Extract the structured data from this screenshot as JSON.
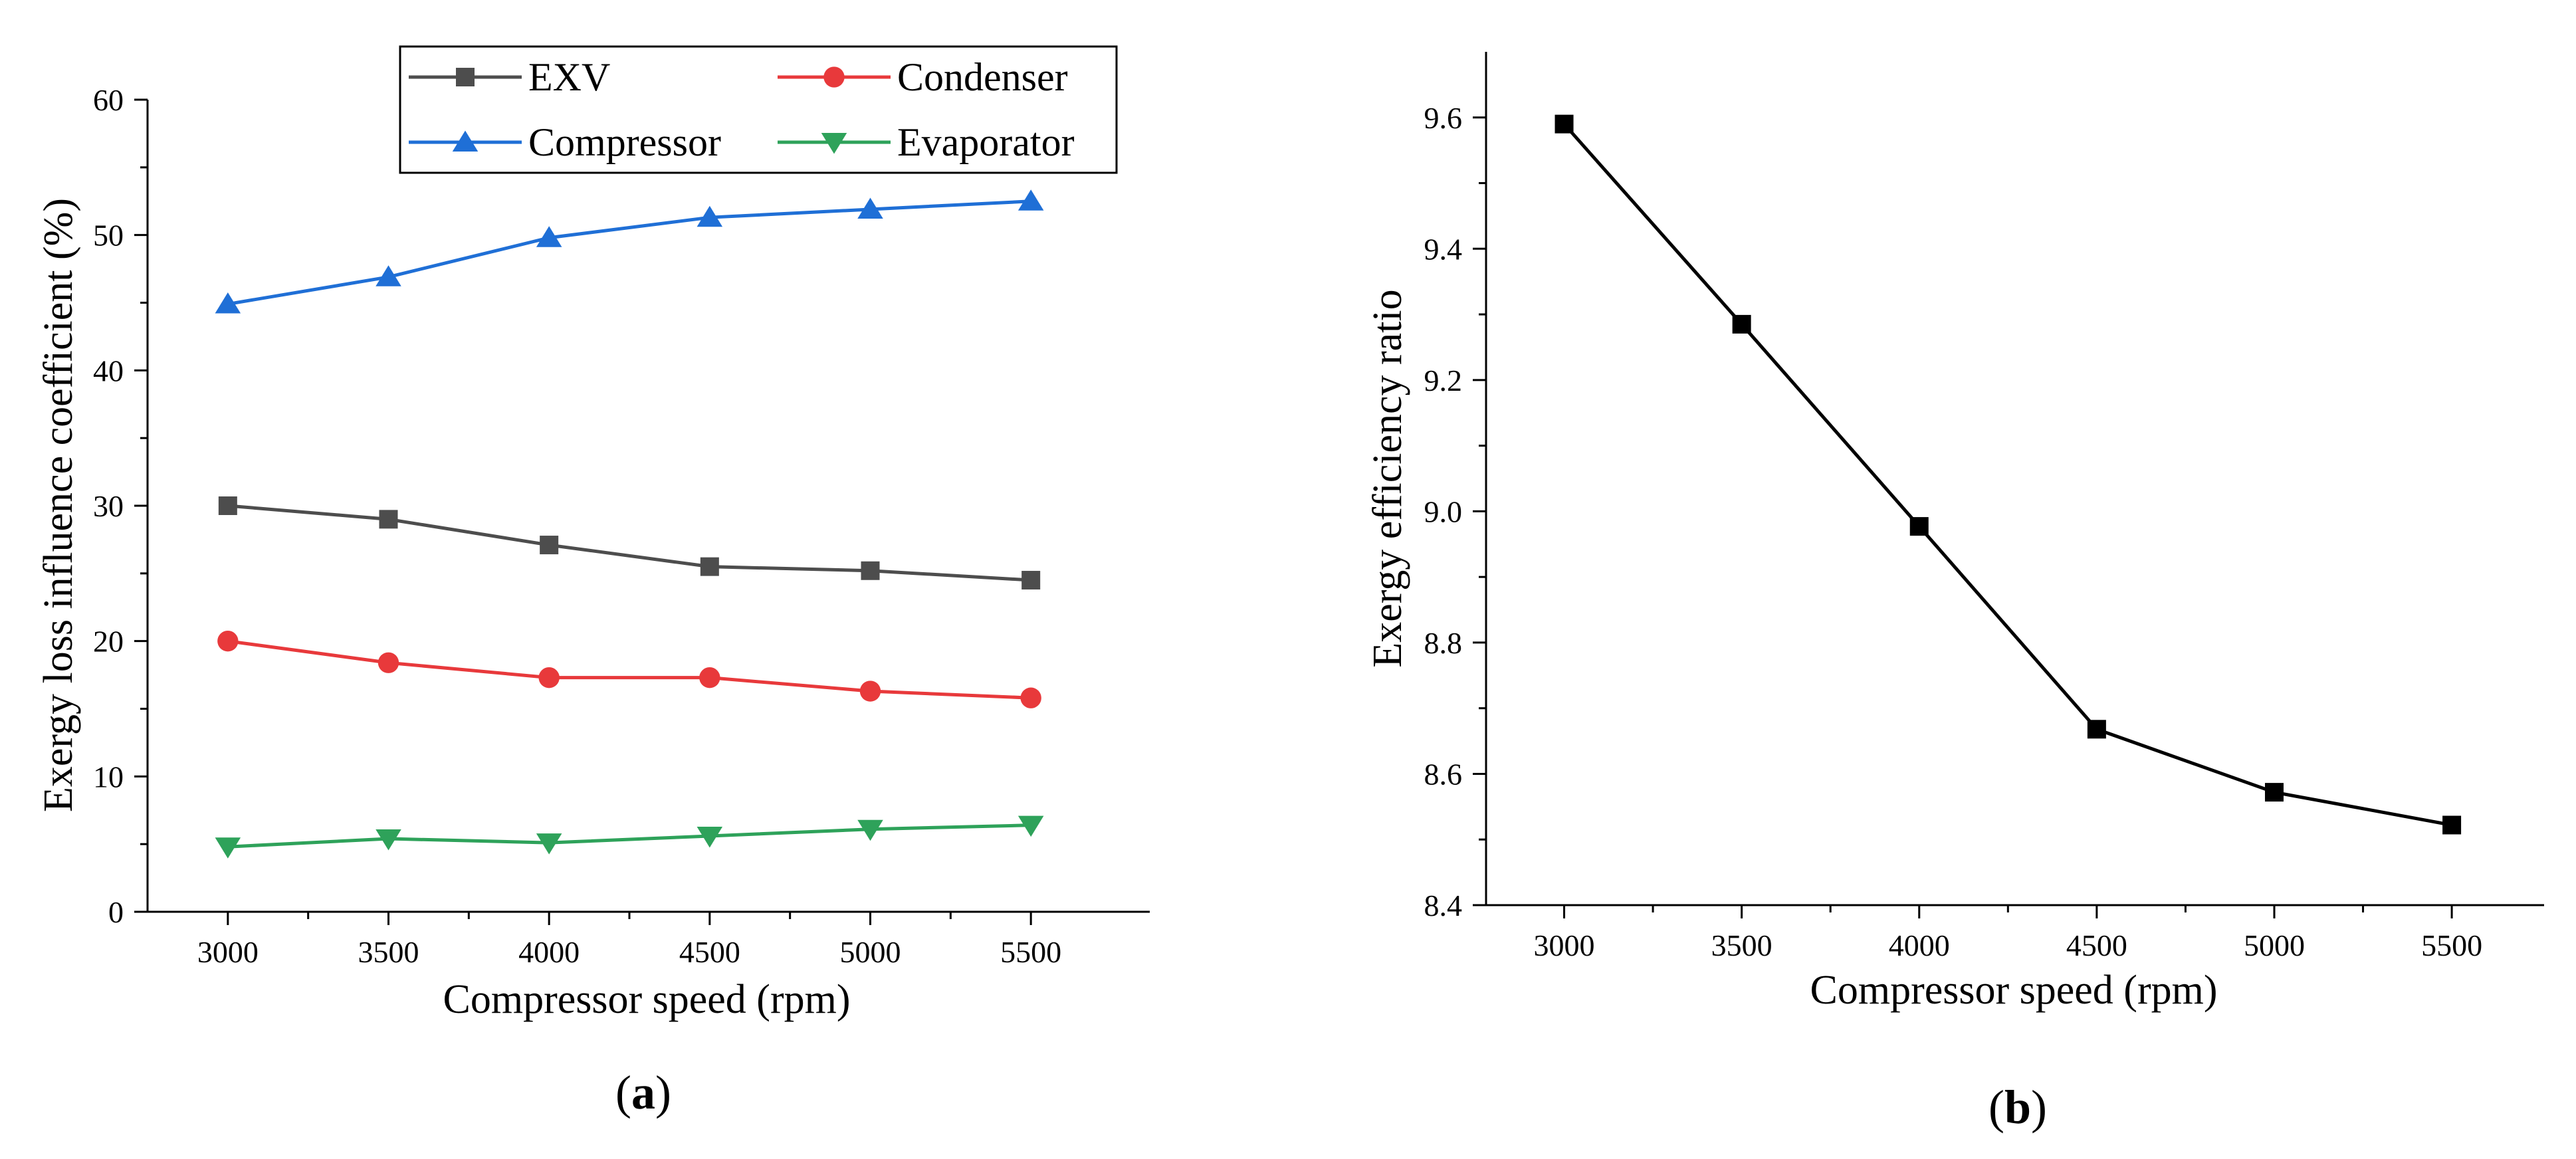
{
  "chart_data": [
    {
      "id": "a",
      "type": "line",
      "caption_letter": "a",
      "xlabel": "Compressor speed (rpm)",
      "ylabel": "Exergy loss influence coefficient (%)",
      "x": [
        3000,
        3500,
        4000,
        4500,
        5000,
        5500
      ],
      "xticks": [
        3000,
        3500,
        4000,
        4500,
        5000,
        5500
      ],
      "xlim": [
        2750,
        5870
      ],
      "ylim": [
        0,
        60
      ],
      "yticks": [
        0,
        10,
        20,
        30,
        40,
        50,
        60
      ],
      "legend_position": "top-right",
      "series": [
        {
          "name": "EXV",
          "color": "#4d4d4d",
          "marker": "square",
          "values": [
            30.0,
            29.0,
            27.1,
            25.5,
            25.2,
            24.5
          ]
        },
        {
          "name": "Condenser",
          "color": "#e8393b",
          "marker": "circle",
          "values": [
            20.0,
            18.4,
            17.3,
            17.3,
            16.3,
            15.8
          ]
        },
        {
          "name": "Compressor",
          "color": "#1f6fd6",
          "marker": "triangle-up",
          "values": [
            44.9,
            46.9,
            49.8,
            51.3,
            51.9,
            52.5
          ]
        },
        {
          "name": "Evaporator",
          "color": "#2ea25a",
          "marker": "triangle-down",
          "values": [
            4.8,
            5.4,
            5.1,
            5.6,
            6.1,
            6.4
          ]
        }
      ]
    },
    {
      "id": "b",
      "type": "line",
      "caption_letter": "b",
      "xlabel": "Compressor speed (rpm)",
      "ylabel": "Exergy efficiency ratio",
      "x": [
        3000,
        3500,
        4000,
        4500,
        5000,
        5500
      ],
      "xticks": [
        3000,
        3500,
        4000,
        4500,
        5000,
        5500
      ],
      "xlim": [
        2780,
        5760
      ],
      "ylim": [
        8.4,
        9.7
      ],
      "yticks": [
        "8.4",
        "8.6",
        "8.8",
        "9.0",
        "9.2",
        "9.4",
        "9.6"
      ],
      "series": [
        {
          "name": "Exergy efficiency ratio",
          "color": "#000000",
          "marker": "square",
          "values": [
            9.59,
            9.285,
            8.977,
            8.668,
            8.572,
            8.522
          ]
        }
      ]
    }
  ]
}
